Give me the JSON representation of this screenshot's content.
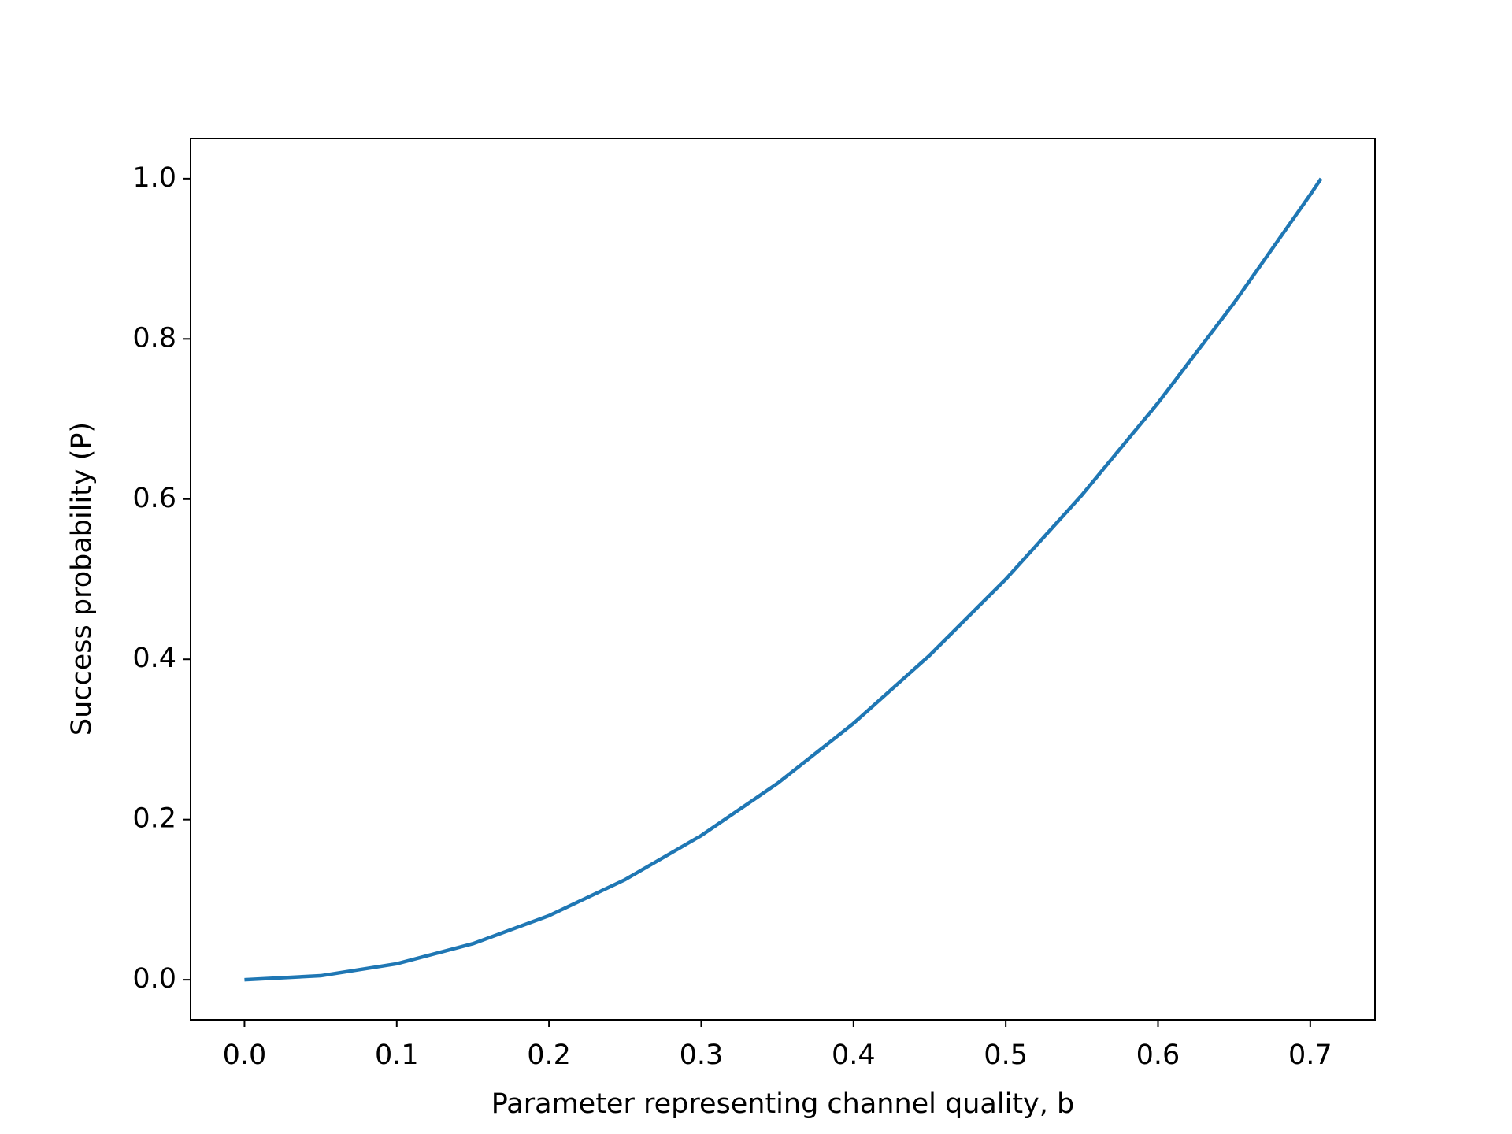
{
  "chart_data": {
    "type": "line",
    "x_label": "Parameter representing channel quality, b",
    "y_label": "Success probability (P)",
    "x": [
      0,
      0.05,
      0.1,
      0.15,
      0.2,
      0.25,
      0.3,
      0.35,
      0.4,
      0.45,
      0.5,
      0.55,
      0.6,
      0.65,
      0.7,
      0.7071
    ],
    "series": [
      {
        "color": "#1f77b4",
        "values": [
          0,
          0.005,
          0.02,
          0.045,
          0.08,
          0.125,
          0.18,
          0.245,
          0.32,
          0.405,
          0.5,
          0.605,
          0.72,
          0.845,
          0.98,
          1.0
        ]
      }
    ],
    "xlim": [
      -0.0354,
      0.7425
    ],
    "ylim": [
      -0.05,
      1.05
    ],
    "xticks": [
      {
        "value": 0,
        "label": "0.0"
      },
      0.1,
      0.2,
      0.3,
      0.4,
      0.5,
      0.6,
      0.7
    ],
    "yticks": [
      {
        "value": 0,
        "label": "0.0"
      },
      0.2,
      0.4,
      0.6,
      0.8,
      {
        "value": 1,
        "label": "1.0"
      }
    ],
    "grid": false
  }
}
